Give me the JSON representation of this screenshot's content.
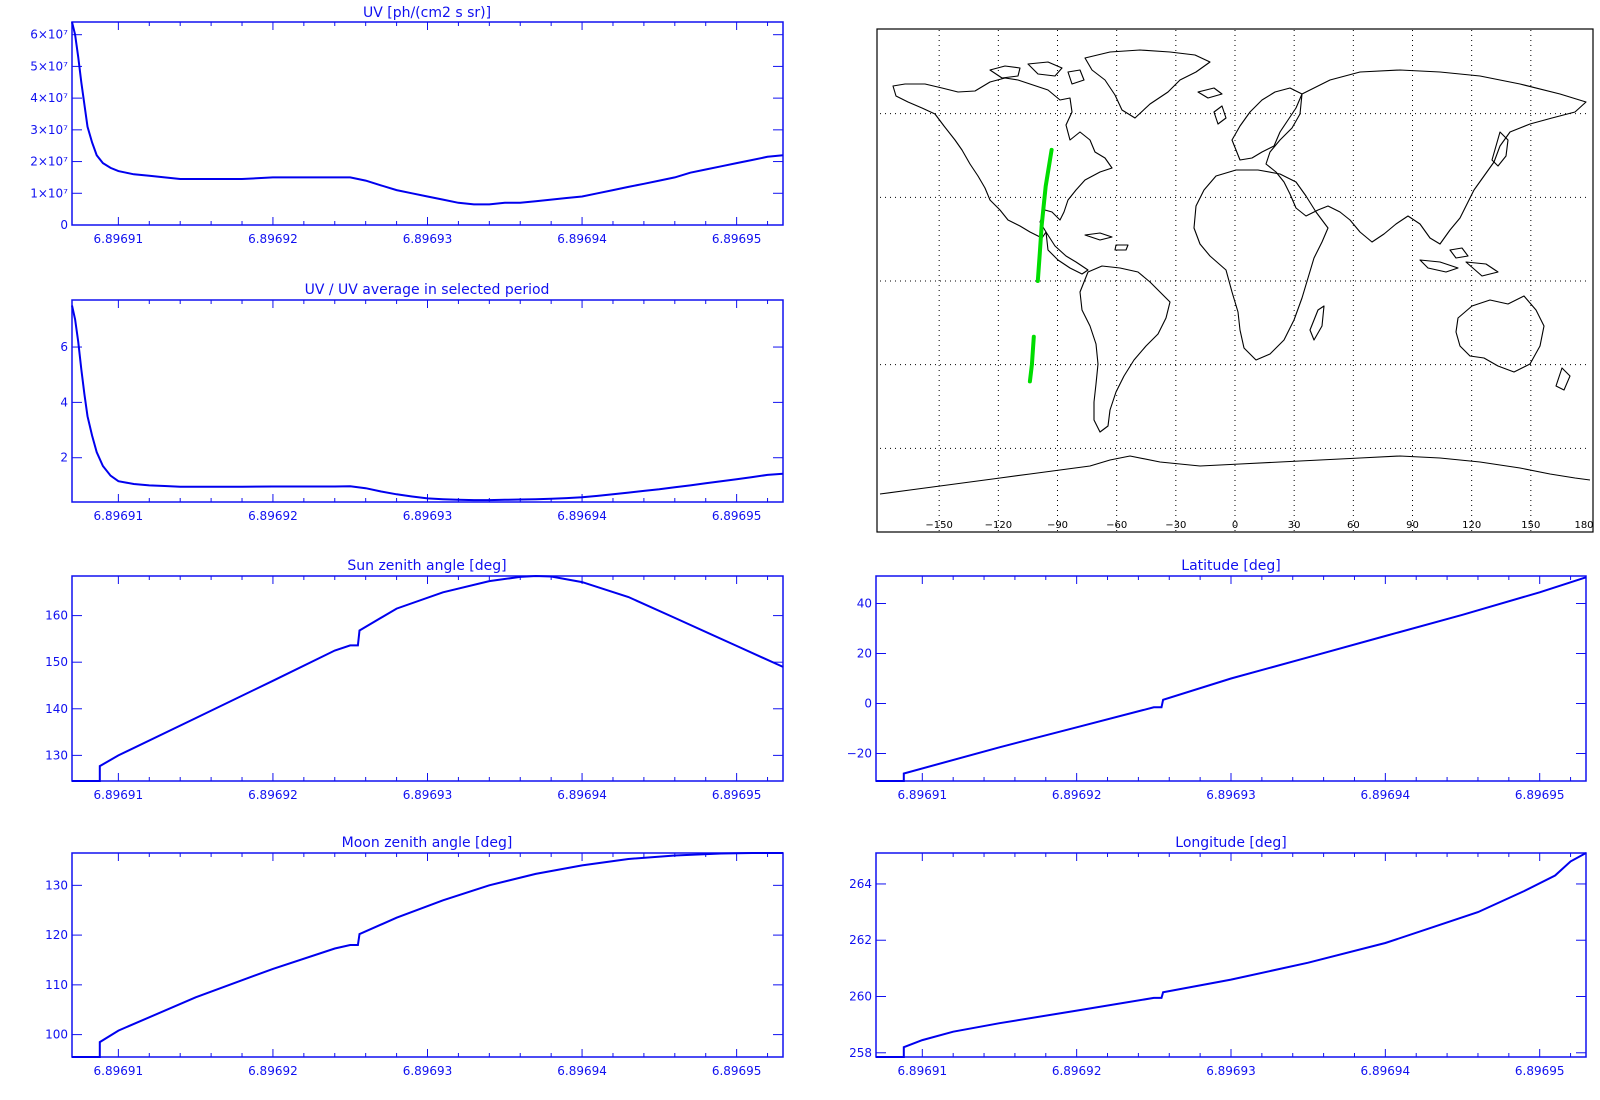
{
  "colors": {
    "axis": "#1010f0",
    "line": "#0000ee",
    "map_outline": "#000000",
    "track": "#00dd00",
    "grid": "#000000"
  },
  "chart_data": [
    {
      "id": "uv",
      "type": "line",
      "title": "UV [ph/(cm2 s sr)]",
      "xlim": [
        6.896907,
        6.896953
      ],
      "ylim": [
        0,
        64000000
      ],
      "x_ticks": [
        "6.89691",
        "6.89692",
        "6.89693",
        "6.89694",
        "6.89695"
      ],
      "y_ticks": [
        {
          "value": 0,
          "label": "0"
        },
        {
          "value": 10000000,
          "label": "1×10⁷"
        },
        {
          "value": 20000000,
          "label": "2×10⁷"
        },
        {
          "value": 30000000,
          "label": "3×10⁷"
        },
        {
          "value": 40000000,
          "label": "4×10⁷"
        },
        {
          "value": 50000000,
          "label": "5×10⁷"
        },
        {
          "value": 60000000,
          "label": "6×10⁷"
        }
      ],
      "series": [
        {
          "x": [
            6.896907,
            6.8969072,
            6.8969074,
            6.8969076,
            6.8969078,
            6.896908,
            6.8969083,
            6.8969086,
            6.896909,
            6.8969095,
            6.89691,
            6.8969105,
            6.896911,
            6.896912,
            6.896913,
            6.896914,
            6.896916,
            6.896918,
            6.89692,
            6.896922,
            6.896924,
            6.896925,
            6.896926,
            6.896927,
            6.896928,
            6.896929,
            6.89693,
            6.896931,
            6.896932,
            6.896933,
            6.896934,
            6.896935,
            6.896936,
            6.896937,
            6.896938,
            6.896939,
            6.89694,
            6.896941,
            6.896942,
            6.896943,
            6.896944,
            6.896945,
            6.896946,
            6.896947,
            6.896948,
            6.896949,
            6.89695,
            6.896951,
            6.896952,
            6.896953
          ],
          "y": [
            64000000,
            60000000,
            53000000,
            45000000,
            38000000,
            31000000,
            26000000,
            22000000,
            19500000,
            18000000,
            17000000,
            16500000,
            16000000,
            15500000,
            15000000,
            14500000,
            14500000,
            14500000,
            15000000,
            15000000,
            15000000,
            15000000,
            14000000,
            12500000,
            11000000,
            10000000,
            9000000,
            8000000,
            7000000,
            6500000,
            6500000,
            7000000,
            7000000,
            7500000,
            8000000,
            8500000,
            9000000,
            10000000,
            11000000,
            12000000,
            13000000,
            14000000,
            15000000,
            16500000,
            17500000,
            18500000,
            19500000,
            20500000,
            21500000,
            22000000
          ]
        }
      ]
    },
    {
      "id": "uv_ratio",
      "type": "line",
      "title": "UV / UV average in selected period",
      "xlim": [
        6.896907,
        6.896953
      ],
      "ylim": [
        0.4,
        7.7
      ],
      "x_ticks": [
        "6.89691",
        "6.89692",
        "6.89693",
        "6.89694",
        "6.89695"
      ],
      "y_ticks": [
        {
          "value": 2,
          "label": "2"
        },
        {
          "value": 4,
          "label": "4"
        },
        {
          "value": 6,
          "label": "6"
        }
      ],
      "series": [
        {
          "x": [
            6.896907,
            6.8969072,
            6.8969074,
            6.8969076,
            6.8969078,
            6.896908,
            6.8969083,
            6.8969086,
            6.896909,
            6.8969095,
            6.89691,
            6.8969105,
            6.896911,
            6.896912,
            6.896913,
            6.896914,
            6.896916,
            6.896918,
            6.89692,
            6.896922,
            6.896924,
            6.896925,
            6.896926,
            6.896927,
            6.896928,
            6.896929,
            6.89693,
            6.896931,
            6.896932,
            6.896933,
            6.896934,
            6.896935,
            6.896936,
            6.896937,
            6.896938,
            6.896939,
            6.89694,
            6.896941,
            6.896942,
            6.896943,
            6.896944,
            6.896945,
            6.896946,
            6.896947,
            6.896948,
            6.896949,
            6.89695,
            6.896951,
            6.896952,
            6.896953
          ],
          "y": [
            7.5,
            7.0,
            6.2,
            5.2,
            4.3,
            3.5,
            2.8,
            2.2,
            1.7,
            1.35,
            1.15,
            1.1,
            1.05,
            1.0,
            0.98,
            0.95,
            0.95,
            0.95,
            0.96,
            0.96,
            0.96,
            0.97,
            0.9,
            0.78,
            0.68,
            0.6,
            0.53,
            0.5,
            0.48,
            0.47,
            0.47,
            0.48,
            0.49,
            0.5,
            0.52,
            0.54,
            0.57,
            0.62,
            0.68,
            0.74,
            0.8,
            0.86,
            0.93,
            1.0,
            1.08,
            1.15,
            1.22,
            1.3,
            1.38,
            1.42
          ]
        }
      ]
    },
    {
      "id": "sun_zenith",
      "type": "line",
      "title": "Sun zenith angle [deg]",
      "xlim": [
        6.896907,
        6.896953
      ],
      "ylim": [
        124.5,
        168.5
      ],
      "x_ticks": [
        "6.89691",
        "6.89692",
        "6.89693",
        "6.89694",
        "6.89695"
      ],
      "y_ticks": [
        {
          "value": 130,
          "label": "130"
        },
        {
          "value": 140,
          "label": "140"
        },
        {
          "value": 150,
          "label": "150"
        },
        {
          "value": 160,
          "label": "160"
        }
      ],
      "series": [
        {
          "x": [
            6.896907,
            6.8969088,
            6.8969088,
            6.89691,
            6.896915,
            6.89692,
            6.896924,
            6.896925,
            6.8969255,
            6.8969256,
            6.896928,
            6.896931,
            6.896934,
            6.896936,
            6.896937,
            6.896938,
            6.89694,
            6.896943,
            6.896946,
            6.89695,
            6.896953
          ],
          "y": [
            124.5,
            124.5,
            127.7,
            130.0,
            138.0,
            146.0,
            152.5,
            153.6,
            153.6,
            156.8,
            161.5,
            165.0,
            167.4,
            168.3,
            168.5,
            168.4,
            167.2,
            164.0,
            159.5,
            153.5,
            149.0
          ]
        }
      ]
    },
    {
      "id": "moon_zenith",
      "type": "line",
      "title": "Moon zenith angle [deg]",
      "xlim": [
        6.896907,
        6.896953
      ],
      "ylim": [
        95.5,
        136.5
      ],
      "x_ticks": [
        "6.89691",
        "6.89692",
        "6.89693",
        "6.89694",
        "6.89695"
      ],
      "y_ticks": [
        {
          "value": 100,
          "label": "100"
        },
        {
          "value": 110,
          "label": "110"
        },
        {
          "value": 120,
          "label": "120"
        },
        {
          "value": 130,
          "label": "130"
        }
      ],
      "series": [
        {
          "x": [
            6.896907,
            6.8969088,
            6.8969088,
            6.89691,
            6.896915,
            6.89692,
            6.896924,
            6.896925,
            6.8969255,
            6.8969256,
            6.896928,
            6.896931,
            6.896934,
            6.896937,
            6.89694,
            6.896943,
            6.896946,
            6.896949,
            6.896951,
            6.896953
          ],
          "y": [
            95.5,
            95.5,
            98.5,
            100.8,
            107.5,
            113.2,
            117.3,
            118.0,
            118.0,
            120.2,
            123.5,
            127.0,
            130.0,
            132.3,
            134.0,
            135.3,
            136.0,
            136.4,
            136.5,
            136.5
          ]
        }
      ]
    },
    {
      "id": "latitude",
      "type": "line",
      "title": "Latitude [deg]",
      "xlim": [
        6.896907,
        6.896953
      ],
      "ylim": [
        -31,
        51
      ],
      "x_ticks": [
        "6.89691",
        "6.89692",
        "6.89693",
        "6.89694",
        "6.89695"
      ],
      "y_ticks": [
        {
          "value": -20,
          "label": "−20"
        },
        {
          "value": 0,
          "label": "0"
        },
        {
          "value": 20,
          "label": "20"
        },
        {
          "value": 40,
          "label": "40"
        }
      ],
      "series": [
        {
          "x": [
            6.896907,
            6.8969088,
            6.8969088,
            6.896915,
            6.89692,
            6.896925,
            6.8969255,
            6.8969256,
            6.89693,
            6.896935,
            6.89694,
            6.896945,
            6.89695,
            6.896953
          ],
          "y": [
            -31,
            -31,
            -28,
            -17.5,
            -9.5,
            -1.5,
            -1.5,
            1.5,
            10.0,
            18.5,
            27.0,
            35.5,
            44.5,
            50.5
          ]
        }
      ]
    },
    {
      "id": "longitude",
      "type": "line",
      "title": "Longitude [deg]",
      "xlim": [
        6.896907,
        6.896953
      ],
      "ylim": [
        257.85,
        265.1
      ],
      "x_ticks": [
        "6.89691",
        "6.89692",
        "6.89693",
        "6.89694",
        "6.89695"
      ],
      "y_ticks": [
        {
          "value": 258,
          "label": "258"
        },
        {
          "value": 260,
          "label": "260"
        },
        {
          "value": 262,
          "label": "262"
        },
        {
          "value": 264,
          "label": "264"
        }
      ],
      "series": [
        {
          "x": [
            6.896907,
            6.8969088,
            6.8969088,
            6.89691,
            6.896912,
            6.896915,
            6.89692,
            6.896925,
            6.8969255,
            6.8969256,
            6.89693,
            6.896935,
            6.89694,
            6.896943,
            6.896946,
            6.896949,
            6.896951,
            6.896952,
            6.896953
          ],
          "y": [
            257.85,
            257.85,
            258.2,
            258.45,
            258.75,
            259.05,
            259.5,
            259.95,
            259.95,
            260.15,
            260.6,
            261.2,
            261.9,
            262.45,
            263.0,
            263.75,
            264.3,
            264.8,
            265.1
          ]
        }
      ]
    }
  ],
  "map": {
    "x_ticks": [
      "−150",
      "−120",
      "−90",
      "−60",
      "−30",
      "0",
      "30",
      "60",
      "90",
      "120",
      "150",
      "180"
    ],
    "track_segments": [
      [
        [
          -93,
          47
        ],
        [
          -96,
          34
        ],
        [
          -98,
          20
        ],
        [
          -99,
          10
        ],
        [
          -100,
          0
        ]
      ],
      [
        [
          -102,
          -20
        ],
        [
          -103,
          -30
        ],
        [
          -104,
          -36
        ]
      ]
    ]
  }
}
